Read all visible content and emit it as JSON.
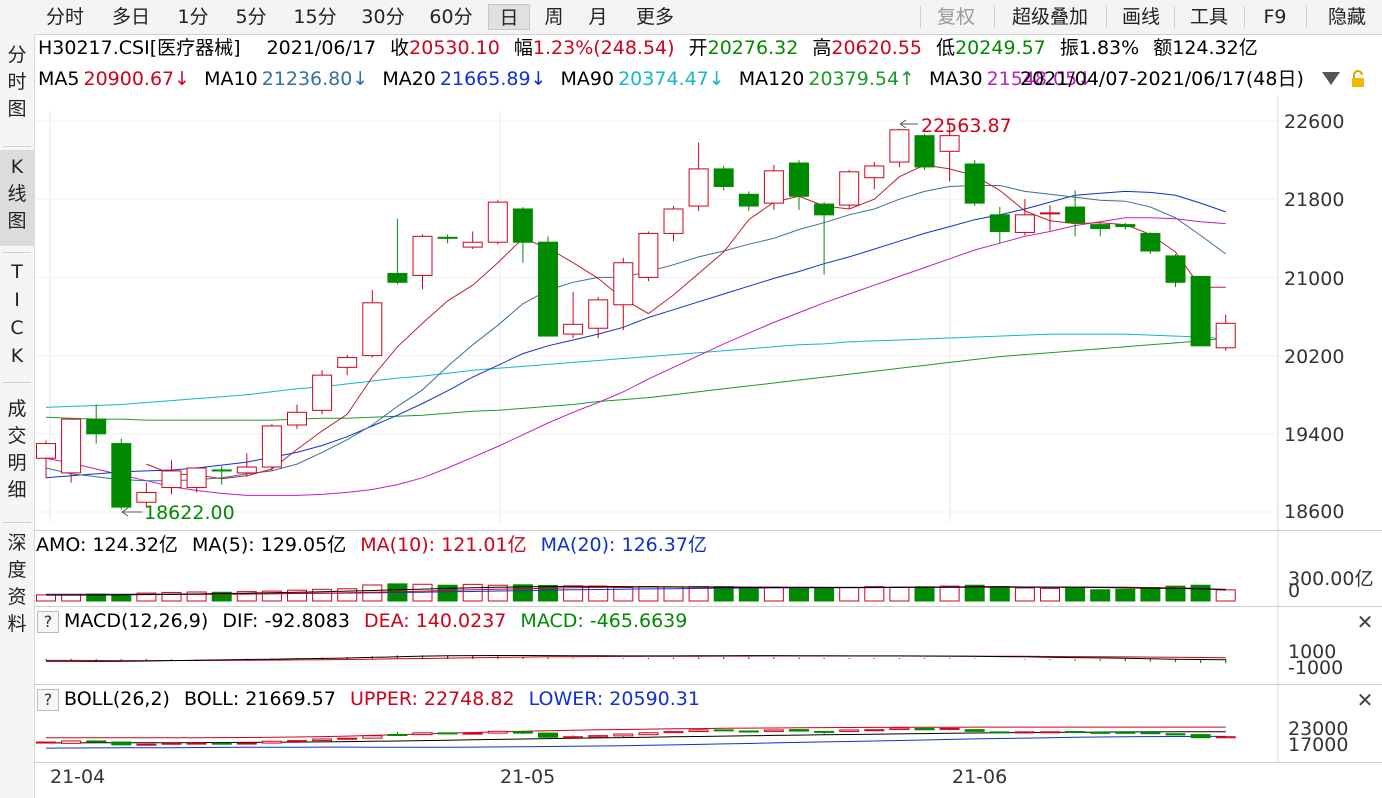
{
  "toolbar": {
    "tabs": [
      "分时",
      "多日",
      "1分",
      "5分",
      "15分",
      "30分",
      "60分",
      "日",
      "周",
      "月",
      "更多"
    ],
    "active_tab": "日",
    "right": {
      "fuquan": "复权",
      "overlay": "超级叠加",
      "draw": "画线",
      "tools": "工具",
      "f9": "F9",
      "hide": "隐藏"
    }
  },
  "sidebar": {
    "fenshi": [
      "分",
      "时",
      "图"
    ],
    "kline": [
      "K",
      "线",
      "图"
    ],
    "tick": [
      "T",
      "I",
      "C",
      "K"
    ],
    "detail": [
      "成",
      "交",
      "明",
      "细"
    ],
    "depth": [
      "深",
      "度",
      "资",
      "料"
    ]
  },
  "quote": {
    "code_name": "H30217.CSI[医疗器械]",
    "date": "2021/06/17",
    "close_label": "收",
    "close": "20530.10",
    "chg_label": "幅",
    "chg": "1.23%(248.54)",
    "open_label": "开",
    "open": "20276.32",
    "high_label": "高",
    "high": "20620.55",
    "low_label": "低",
    "low": "20249.57",
    "amp_label": "振",
    "amp": "1.83%",
    "amt_label": "额",
    "amt": "124.32亿"
  },
  "ma_line": {
    "ma5": "MA5",
    "ma5_v": "20900.67↓",
    "ma10": "MA10",
    "ma10_v": "21236.80↓",
    "ma20": "MA20",
    "ma20_v": "21665.89↓",
    "ma90": "MA90",
    "ma90_v": "20374.47↓",
    "ma120": "MA120",
    "ma120_v": "20379.54↑",
    "ma30": "MA30",
    "ma30_v": "21548.05↓",
    "range": "2021/04/07-2021/06/17(48日)"
  },
  "colors": {
    "up": "#d0021b",
    "down": "#008a00",
    "ma5": "#c0202a",
    "ma10": "#3a6f9c",
    "ma20": "#1030d0",
    "ma30": "#c020c0",
    "ma90": "#14b8c8",
    "ma120": "#1b9a2a"
  },
  "main_axis": [
    "22600",
    "21800",
    "21000",
    "20200",
    "19400",
    "18600"
  ],
  "annotations": {
    "high": "22563.87",
    "low": "18622.00"
  },
  "amo": {
    "title": "AMO: 124.32亿",
    "ma5": "MA(5): 129.05亿",
    "ma10": "MA(10): 121.01亿",
    "ma20": "MA(20): 126.37亿",
    "axis_top": "300.00亿",
    "axis_zero": "0"
  },
  "macd": {
    "q": "?",
    "title": "MACD(12,26,9)",
    "dif": "DIF: -92.8083",
    "dea": "DEA: 140.0237",
    "macd": "MACD: -465.6639",
    "axis_top": "1000",
    "axis_bottom": "-1000"
  },
  "boll": {
    "q": "?",
    "title": "BOLL(26,2)",
    "boll": "BOLL: 21669.57",
    "upper": "UPPER: 22748.82",
    "lower": "LOWER: 20590.31",
    "axis_top": "23000",
    "axis_bottom": "17000"
  },
  "x_axis": [
    "21-04",
    "21-05",
    "21-06"
  ],
  "chart_data": {
    "type": "candlestick",
    "ylim": [
      18400,
      22800
    ],
    "candles": [
      {
        "o": 19150,
        "c": 19300,
        "h": 19330,
        "l": 18950
      },
      {
        "o": 19000,
        "c": 19550,
        "h": 19560,
        "l": 18900
      },
      {
        "o": 19550,
        "c": 19400,
        "h": 19700,
        "l": 19300
      },
      {
        "o": 19300,
        "c": 18650,
        "h": 19350,
        "l": 18622
      },
      {
        "o": 18700,
        "c": 18800,
        "h": 18900,
        "l": 18650
      },
      {
        "o": 18850,
        "c": 19020,
        "h": 19130,
        "l": 18780
      },
      {
        "o": 18850,
        "c": 19050,
        "h": 19060,
        "l": 18800
      },
      {
        "o": 19030,
        "c": 19020,
        "h": 19070,
        "l": 18880
      },
      {
        "o": 19000,
        "c": 19060,
        "h": 19200,
        "l": 18960
      },
      {
        "o": 19060,
        "c": 19480,
        "h": 19500,
        "l": 19020
      },
      {
        "o": 19490,
        "c": 19620,
        "h": 19700,
        "l": 19450
      },
      {
        "o": 19640,
        "c": 20000,
        "h": 20050,
        "l": 19600
      },
      {
        "o": 20080,
        "c": 20180,
        "h": 20210,
        "l": 20000
      },
      {
        "o": 20200,
        "c": 20740,
        "h": 20870,
        "l": 20180
      },
      {
        "o": 21040,
        "c": 20950,
        "h": 21600,
        "l": 20930
      },
      {
        "o": 21020,
        "c": 21420,
        "h": 21440,
        "l": 20880
      },
      {
        "o": 21410,
        "c": 21400,
        "h": 21440,
        "l": 21350
      },
      {
        "o": 21310,
        "c": 21360,
        "h": 21470,
        "l": 21290
      },
      {
        "o": 21360,
        "c": 21770,
        "h": 21790,
        "l": 21340
      },
      {
        "o": 21700,
        "c": 21360,
        "h": 21720,
        "l": 21150
      },
      {
        "o": 21360,
        "c": 20400,
        "h": 21420,
        "l": 20400
      },
      {
        "o": 20420,
        "c": 20520,
        "h": 20850,
        "l": 20380
      },
      {
        "o": 20480,
        "c": 20770,
        "h": 20800,
        "l": 20380
      },
      {
        "o": 20720,
        "c": 21150,
        "h": 21200,
        "l": 20460
      },
      {
        "o": 21000,
        "c": 21450,
        "h": 21470,
        "l": 20960
      },
      {
        "o": 21450,
        "c": 21700,
        "h": 21730,
        "l": 21370
      },
      {
        "o": 21730,
        "c": 22110,
        "h": 22380,
        "l": 21680
      },
      {
        "o": 22110,
        "c": 21930,
        "h": 22140,
        "l": 21890
      },
      {
        "o": 21850,
        "c": 21730,
        "h": 21880,
        "l": 21680
      },
      {
        "o": 21760,
        "c": 22090,
        "h": 22150,
        "l": 21690
      },
      {
        "o": 22170,
        "c": 21830,
        "h": 22200,
        "l": 21690
      },
      {
        "o": 21750,
        "c": 21640,
        "h": 21770,
        "l": 21030
      },
      {
        "o": 21740,
        "c": 22080,
        "h": 22100,
        "l": 21700
      },
      {
        "o": 22020,
        "c": 22140,
        "h": 22180,
        "l": 21900
      },
      {
        "o": 22180,
        "c": 22510,
        "h": 22520,
        "l": 22130
      },
      {
        "o": 22450,
        "c": 22130,
        "h": 22470,
        "l": 22100
      },
      {
        "o": 22290,
        "c": 22450,
        "h": 22564,
        "l": 21980
      },
      {
        "o": 22160,
        "c": 21760,
        "h": 22200,
        "l": 21730
      },
      {
        "o": 21640,
        "c": 21470,
        "h": 21720,
        "l": 21350
      },
      {
        "o": 21460,
        "c": 21640,
        "h": 21800,
        "l": 21430
      },
      {
        "o": 21650,
        "c": 21660,
        "h": 21740,
        "l": 21480
      },
      {
        "o": 21720,
        "c": 21560,
        "h": 21890,
        "l": 21420
      },
      {
        "o": 21540,
        "c": 21500,
        "h": 21560,
        "l": 21420
      },
      {
        "o": 21540,
        "c": 21520,
        "h": 21560,
        "l": 21490
      },
      {
        "o": 21450,
        "c": 21270,
        "h": 21460,
        "l": 21240
      },
      {
        "o": 21220,
        "c": 20950,
        "h": 21240,
        "l": 20900
      },
      {
        "o": 21010,
        "c": 20300,
        "h": 21010,
        "l": 20300
      },
      {
        "o": 20280,
        "c": 20530,
        "h": 20620,
        "l": 20250
      }
    ],
    "volume": [
      68,
      72,
      77,
      69,
      88,
      95,
      100,
      97,
      104,
      110,
      120,
      130,
      136,
      178,
      190,
      186,
      175,
      185,
      175,
      180,
      172,
      168,
      165,
      150,
      160,
      158,
      160,
      160,
      148,
      155,
      145,
      140,
      150,
      160,
      155,
      158,
      165,
      175,
      160,
      145,
      140,
      150,
      125,
      130,
      150,
      165,
      175,
      124
    ],
    "ma": {
      "ma5": [
        null,
        null,
        null,
        null,
        19090,
        18990,
        18980,
        18940,
        18970,
        19040,
        19240,
        19430,
        19600,
        19980,
        20290,
        20530,
        20760,
        20920,
        21150,
        21400,
        21300,
        21150,
        20990,
        20780,
        20630,
        20820,
        21040,
        21260,
        21590,
        21770,
        21830,
        21730,
        21700,
        21800,
        22030,
        22150,
        22110,
        22040,
        21890,
        21680,
        21580,
        21550,
        21560,
        21540,
        21440,
        21260,
        20900,
        20900
      ],
      "ma10": [
        19050,
        18990,
        18960,
        18930,
        18920,
        18920,
        18930,
        18950,
        18990,
        19020,
        19090,
        19210,
        19340,
        19490,
        19680,
        19850,
        20090,
        20310,
        20510,
        20730,
        20870,
        20950,
        21000,
        21000,
        21060,
        21130,
        21210,
        21270,
        21340,
        21400,
        21490,
        21560,
        21640,
        21700,
        21800,
        21880,
        21930,
        21940,
        21940,
        21880,
        21850,
        21820,
        21790,
        21780,
        21720,
        21610,
        21430,
        21240
      ],
      "ma20": [
        18950,
        18970,
        18990,
        19010,
        19020,
        19030,
        19050,
        19080,
        19110,
        19160,
        19210,
        19280,
        19370,
        19480,
        19590,
        19710,
        19840,
        19980,
        20100,
        20220,
        20300,
        20360,
        20420,
        20490,
        20590,
        20670,
        20750,
        20830,
        20910,
        20990,
        21060,
        21140,
        21210,
        21290,
        21370,
        21450,
        21520,
        21590,
        21640,
        21700,
        21770,
        21840,
        21860,
        21880,
        21870,
        21840,
        21760,
        21670
      ],
      "ma30": [
        19150,
        19100,
        19040,
        18980,
        18920,
        18860,
        18820,
        18790,
        18770,
        18770,
        18770,
        18780,
        18800,
        18830,
        18880,
        18950,
        19050,
        19160,
        19270,
        19390,
        19510,
        19620,
        19720,
        19830,
        19960,
        20080,
        20200,
        20320,
        20430,
        20540,
        20640,
        20740,
        20830,
        20920,
        21010,
        21100,
        21190,
        21280,
        21350,
        21420,
        21470,
        21530,
        21570,
        21610,
        21610,
        21600,
        21570,
        21550
      ],
      "ma90": [
        19670,
        19680,
        19690,
        19700,
        19720,
        19740,
        19760,
        19780,
        19800,
        19830,
        19860,
        19880,
        19910,
        19940,
        19970,
        19990,
        20020,
        20050,
        20070,
        20090,
        20110,
        20130,
        20150,
        20170,
        20190,
        20210,
        20230,
        20250,
        20270,
        20290,
        20310,
        20320,
        20340,
        20350,
        20360,
        20370,
        20380,
        20390,
        20400,
        20410,
        20420,
        20420,
        20420,
        20420,
        20410,
        20400,
        20390,
        20370
      ],
      "ma120": [
        19570,
        19560,
        19550,
        19550,
        19540,
        19540,
        19540,
        19540,
        19540,
        19540,
        19550,
        19560,
        19560,
        19570,
        19580,
        19590,
        19610,
        19630,
        19640,
        19660,
        19680,
        19700,
        19730,
        19750,
        19770,
        19800,
        19830,
        19860,
        19890,
        19920,
        19950,
        19980,
        20010,
        20040,
        20070,
        20100,
        20130,
        20160,
        20190,
        20210,
        20230,
        20250,
        20270,
        20290,
        20310,
        20330,
        20350,
        20380
      ]
    },
    "amo_ma": {
      "ma5": [
        65,
        66,
        67,
        68,
        72,
        74,
        78,
        83,
        87,
        92,
        98,
        103,
        110,
        117,
        125,
        132,
        140,
        147,
        152,
        158,
        160,
        162,
        162,
        160,
        158,
        156,
        154,
        152,
        150,
        150,
        150,
        150,
        150,
        150,
        151,
        152,
        155,
        158,
        158,
        156,
        155,
        154,
        150,
        146,
        142,
        140,
        136,
        129
      ],
      "ma10": [
        70,
        70,
        70,
        70,
        71,
        72,
        73,
        75,
        77,
        80,
        83,
        87,
        92,
        97,
        103,
        110,
        118,
        125,
        131,
        137,
        142,
        147,
        151,
        155,
        157,
        157,
        157,
        157,
        156,
        155,
        154,
        153,
        152,
        152,
        152,
        152,
        152,
        153,
        154,
        154,
        154,
        154,
        153,
        152,
        149,
        145,
        140,
        121
      ],
      "ma20": [
        75,
        75,
        75,
        76,
        76,
        77,
        78,
        79,
        80,
        82,
        84,
        86,
        88,
        90,
        94,
        98,
        102,
        106,
        111,
        116,
        120,
        124,
        128,
        131,
        134,
        137,
        140,
        142,
        144,
        145,
        146,
        147,
        148,
        149,
        150,
        151,
        152,
        152,
        153,
        153,
        153,
        153,
        152,
        151,
        148,
        142,
        135,
        126
      ]
    },
    "macd": [
      -150,
      -180,
      -200,
      -150,
      -120,
      -80,
      -40,
      0,
      40,
      80,
      120,
      160,
      220,
      320,
      400,
      420,
      380,
      330,
      300,
      250,
      150,
      80,
      60,
      80,
      120,
      150,
      180,
      200,
      200,
      180,
      160,
      120,
      100,
      90,
      100,
      90,
      80,
      60,
      -20,
      -80,
      -120,
      -160,
      -200,
      -240,
      -300,
      -360,
      -430,
      -466
    ],
    "macd_dif": [
      -250,
      -260,
      -270,
      -250,
      -220,
      -180,
      -140,
      -100,
      -60,
      -20,
      20,
      60,
      110,
      180,
      250,
      320,
      360,
      380,
      390,
      390,
      380,
      370,
      360,
      350,
      350,
      350,
      360,
      370,
      380,
      380,
      370,
      360,
      350,
      340,
      340,
      330,
      320,
      300,
      270,
      240,
      200,
      160,
      120,
      80,
      30,
      -20,
      -60,
      -93
    ],
    "macd_dea": [
      -150,
      -160,
      -170,
      -175,
      -175,
      -170,
      -165,
      -155,
      -140,
      -120,
      -100,
      -80,
      -50,
      -20,
      20,
      60,
      100,
      140,
      180,
      210,
      240,
      260,
      280,
      290,
      300,
      310,
      315,
      320,
      325,
      330,
      330,
      330,
      330,
      330,
      330,
      325,
      320,
      315,
      305,
      295,
      280,
      265,
      250,
      230,
      210,
      190,
      165,
      140
    ],
    "boll": {
      "mid": [
        19100,
        19110,
        19120,
        19130,
        19140,
        19150,
        19170,
        19190,
        19220,
        19250,
        19290,
        19340,
        19400,
        19470,
        19550,
        19640,
        19730,
        19820,
        19910,
        20000,
        20090,
        20170,
        20250,
        20330,
        20410,
        20500,
        20580,
        20660,
        20740,
        20820,
        20900,
        20970,
        21040,
        21110,
        21180,
        21250,
        21320,
        21380,
        21430,
        21480,
        21530,
        21570,
        21600,
        21630,
        21650,
        21660,
        21670,
        21670
      ],
      "upper": [
        20300,
        20300,
        20300,
        20300,
        20300,
        20300,
        20300,
        20320,
        20350,
        20400,
        20470,
        20560,
        20680,
        20830,
        21000,
        21180,
        21350,
        21500,
        21650,
        21790,
        21910,
        22020,
        22120,
        22200,
        22280,
        22350,
        22410,
        22460,
        22510,
        22550,
        22590,
        22620,
        22650,
        22680,
        22700,
        22720,
        22730,
        22740,
        22750,
        22750,
        22750,
        22750,
        22750,
        22750,
        22750,
        22750,
        22750,
        22749
      ],
      "lower": [
        17900,
        17920,
        17940,
        17960,
        17980,
        18000,
        18040,
        18060,
        18090,
        18100,
        18110,
        18120,
        18120,
        18110,
        18100,
        18100,
        18110,
        18140,
        18170,
        18210,
        18270,
        18320,
        18380,
        18460,
        18540,
        18650,
        18750,
        18860,
        18970,
        19090,
        19210,
        19320,
        19430,
        19540,
        19660,
        19780,
        19910,
        20020,
        20110,
        20210,
        20310,
        20390,
        20450,
        20510,
        20550,
        20570,
        20590,
        20590
      ]
    }
  }
}
